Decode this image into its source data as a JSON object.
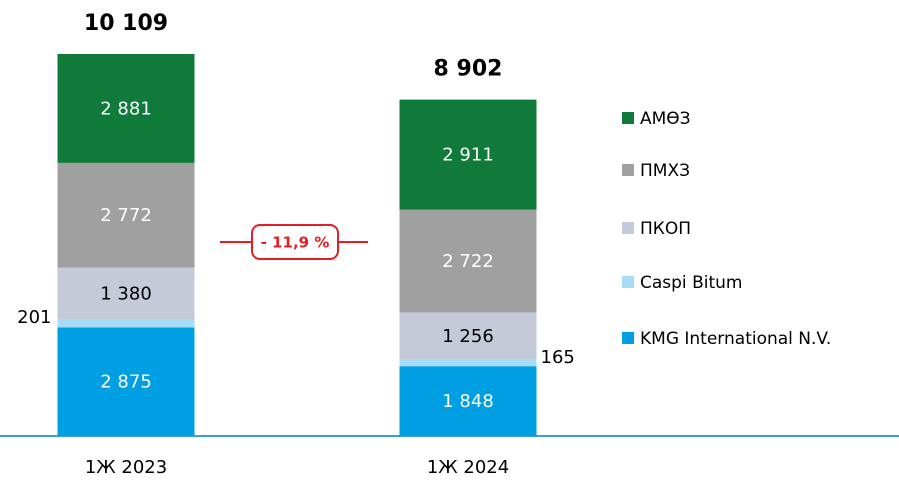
{
  "chart_data": {
    "type": "stacked-bar",
    "categories": [
      "1Ж 2023",
      "1Ж 2024"
    ],
    "series": [
      {
        "name": "KMG International N.V.",
        "color": "#009fe3",
        "label_color": "#ffffff",
        "values": [
          2875,
          1848
        ],
        "value_labels": [
          "2 875",
          "1 848"
        ]
      },
      {
        "name": "Caspi Bitum",
        "color": "#a6dcf5",
        "label_color": "#000000",
        "values": [
          201,
          165
        ],
        "value_labels": [
          "201",
          "165"
        ]
      },
      {
        "name": "ПКОП",
        "color": "#c5cad9",
        "label_color": "#000000",
        "values": [
          1380,
          1256
        ],
        "value_labels": [
          "1 380",
          "1 256"
        ]
      },
      {
        "name": "ПМХЗ",
        "color": "#a0a0a0",
        "label_color": "#ffffff",
        "values": [
          2772,
          2722
        ],
        "value_labels": [
          "2 772",
          "2 722"
        ]
      },
      {
        "name": "АМӨЗ",
        "color": "#0f7a3a",
        "label_color": "#ffffff",
        "values": [
          2881,
          2911
        ],
        "value_labels": [
          "2 881",
          "2 911"
        ]
      }
    ],
    "totals": [
      10109,
      8902
    ],
    "total_labels": [
      "10 109",
      "8 902"
    ],
    "annotation": "- 11,9 %",
    "legend": "right"
  }
}
